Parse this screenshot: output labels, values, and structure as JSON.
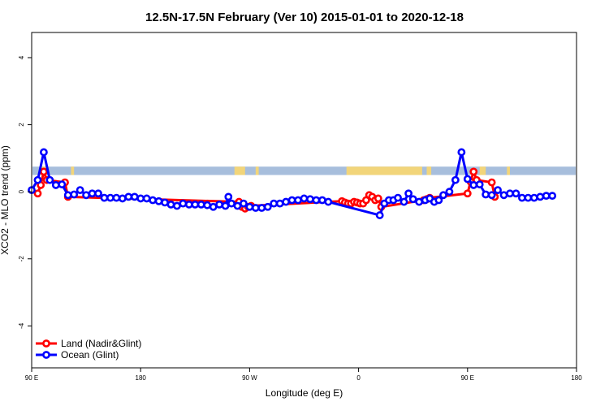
{
  "chart_data": {
    "type": "line",
    "title": "12.5N-17.5N February (Ver 10)   2015-01-01 to 2020-12-18",
    "xlabel": "Longitude (deg E)",
    "ylabel": "XCO2 - MLO trend (ppm)",
    "xlim": [
      90,
      450
    ],
    "ylim": [
      -5.25,
      4.75
    ],
    "x_ticks": [
      {
        "value": 90,
        "label": "90 E"
      },
      {
        "value": 162,
        "label": "180"
      },
      {
        "value": 234,
        "label": "90 W"
      },
      {
        "value": 306,
        "label": "0"
      },
      {
        "value": 378,
        "label": "90 E"
      },
      {
        "value": 450,
        "label": "180"
      }
    ],
    "y_ticks": [
      {
        "value": -4,
        "label": "-4"
      },
      {
        "value": -2,
        "label": "-2"
      },
      {
        "value": 0,
        "label": "0"
      },
      {
        "value": 2,
        "label": "2"
      },
      {
        "value": 4,
        "label": "4"
      }
    ],
    "land_mask_band": {
      "y_range": [
        0.5,
        0.75
      ],
      "ocean_color": "#a7bedc",
      "land_color": "#f2d57a",
      "land_segments": [
        [
          95.5,
          99.5
        ],
        [
          116,
          118
        ],
        [
          224,
          231
        ],
        [
          238,
          240
        ],
        [
          298,
          348
        ],
        [
          351,
          354
        ],
        [
          386,
          390
        ],
        [
          404,
          406
        ]
      ]
    },
    "series": [
      {
        "name": "Land (Nadir&Glint)",
        "color": "#ff0000",
        "points": [
          [
            94,
            -0.05
          ],
          [
            96,
            0.2
          ],
          [
            98,
            0.6
          ],
          [
            100,
            0.35
          ],
          [
            112,
            0.28
          ],
          [
            114,
            -0.15
          ],
          [
            227,
            -0.3
          ],
          [
            229,
            -0.45
          ],
          [
            231,
            -0.5
          ],
          [
            233,
            -0.45
          ],
          [
            235,
            -0.42
          ],
          [
            295,
            -0.28
          ],
          [
            297,
            -0.32
          ],
          [
            299,
            -0.35
          ],
          [
            301,
            -0.35
          ],
          [
            303,
            -0.3
          ],
          [
            305,
            -0.32
          ],
          [
            307,
            -0.35
          ],
          [
            309,
            -0.35
          ],
          [
            311,
            -0.25
          ],
          [
            313,
            -0.1
          ],
          [
            315,
            -0.15
          ],
          [
            317,
            -0.25
          ],
          [
            319,
            -0.2
          ],
          [
            321,
            -0.45
          ],
          [
            349,
            -0.25
          ],
          [
            351,
            -0.22
          ],
          [
            353,
            -0.18
          ],
          [
            378,
            -0.05
          ],
          [
            380,
            0.3
          ],
          [
            382,
            0.6
          ],
          [
            384,
            0.35
          ],
          [
            394,
            0.28
          ],
          [
            396,
            -0.15
          ]
        ]
      },
      {
        "name": "Ocean (Glint)",
        "color": "#0000ff",
        "points": [
          [
            90,
            0.05
          ],
          [
            94,
            0.35
          ],
          [
            98,
            1.18
          ],
          [
            102,
            0.35
          ],
          [
            106,
            0.2
          ],
          [
            110,
            0.22
          ],
          [
            114,
            -0.1
          ],
          [
            118,
            -0.08
          ],
          [
            122,
            0.05
          ],
          [
            126,
            -0.1
          ],
          [
            130,
            -0.05
          ],
          [
            134,
            -0.05
          ],
          [
            138,
            -0.18
          ],
          [
            142,
            -0.18
          ],
          [
            146,
            -0.18
          ],
          [
            150,
            -0.2
          ],
          [
            154,
            -0.15
          ],
          [
            158,
            -0.15
          ],
          [
            162,
            -0.2
          ],
          [
            166,
            -0.2
          ],
          [
            170,
            -0.25
          ],
          [
            174,
            -0.28
          ],
          [
            178,
            -0.32
          ],
          [
            182,
            -0.38
          ],
          [
            186,
            -0.42
          ],
          [
            190,
            -0.35
          ],
          [
            194,
            -0.38
          ],
          [
            198,
            -0.38
          ],
          [
            202,
            -0.38
          ],
          [
            206,
            -0.4
          ],
          [
            210,
            -0.45
          ],
          [
            214,
            -0.38
          ],
          [
            218,
            -0.42
          ],
          [
            220,
            -0.15
          ],
          [
            222,
            -0.35
          ],
          [
            226,
            -0.42
          ],
          [
            230,
            -0.35
          ],
          [
            234,
            -0.45
          ],
          [
            238,
            -0.48
          ],
          [
            242,
            -0.48
          ],
          [
            246,
            -0.45
          ],
          [
            250,
            -0.35
          ],
          [
            254,
            -0.35
          ],
          [
            258,
            -0.3
          ],
          [
            262,
            -0.25
          ],
          [
            266,
            -0.25
          ],
          [
            270,
            -0.2
          ],
          [
            274,
            -0.22
          ],
          [
            278,
            -0.25
          ],
          [
            282,
            -0.25
          ],
          [
            286,
            -0.3
          ],
          [
            320,
            -0.7
          ],
          [
            323,
            -0.35
          ],
          [
            326,
            -0.25
          ],
          [
            329,
            -0.25
          ],
          [
            332,
            -0.18
          ],
          [
            336,
            -0.3
          ],
          [
            339,
            -0.05
          ],
          [
            342,
            -0.22
          ],
          [
            346,
            -0.3
          ],
          [
            350,
            -0.25
          ],
          [
            353,
            -0.2
          ],
          [
            356,
            -0.3
          ],
          [
            359,
            -0.25
          ],
          [
            362,
            -0.1
          ],
          [
            366,
            0.0
          ],
          [
            370,
            0.35
          ],
          [
            374,
            1.18
          ],
          [
            378,
            0.38
          ],
          [
            382,
            0.2
          ],
          [
            386,
            0.22
          ],
          [
            390,
            -0.08
          ],
          [
            394,
            -0.1
          ],
          [
            398,
            0.05
          ],
          [
            402,
            -0.1
          ],
          [
            406,
            -0.05
          ],
          [
            410,
            -0.05
          ],
          [
            414,
            -0.18
          ],
          [
            418,
            -0.18
          ],
          [
            422,
            -0.18
          ],
          [
            426,
            -0.15
          ],
          [
            430,
            -0.12
          ],
          [
            434,
            -0.12
          ]
        ]
      }
    ],
    "legend": {
      "position": "bottom-left",
      "entries": [
        {
          "label": "Land (Nadir&Glint)",
          "color": "#ff0000"
        },
        {
          "label": "Ocean (Glint)",
          "color": "#0000ff"
        }
      ]
    },
    "grid": false
  }
}
